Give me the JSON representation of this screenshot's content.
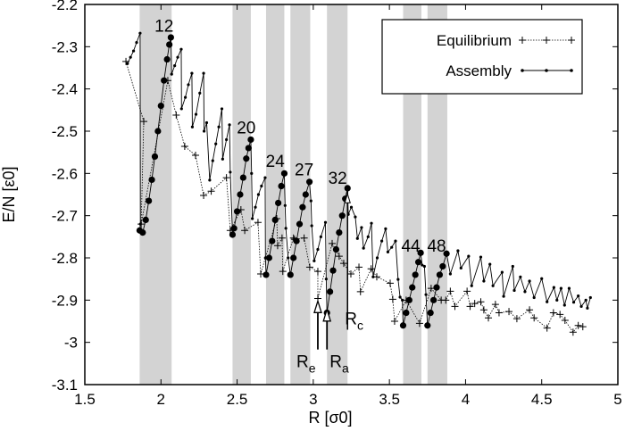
{
  "chart_data": {
    "type": "line",
    "xlabel": "R [σ0]",
    "ylabel": "E/N [ε0]",
    "xlim": [
      1.5,
      5
    ],
    "ylim": [
      -3.1,
      -2.2
    ],
    "xticks": [
      "1.5",
      "2",
      "2.5",
      "3",
      "3.5",
      "4",
      "4.5",
      "5"
    ],
    "yticks": [
      "-2.2",
      "-2.3",
      "-2.4",
      "-2.5",
      "-2.6",
      "-2.7",
      "-2.8",
      "-2.9",
      "-3",
      "-3.1"
    ],
    "grid": false,
    "legend_position": "top-right",
    "shaded_bands": [
      [
        1.86,
        2.07
      ],
      [
        2.47,
        2.59
      ],
      [
        2.69,
        2.81
      ],
      [
        2.85,
        2.98
      ],
      [
        3.09,
        3.225
      ],
      [
        3.59,
        3.71
      ],
      [
        3.75,
        3.88
      ]
    ],
    "peak_labels": [
      {
        "label": "12",
        "x": 2.02,
        "y": -2.25
      },
      {
        "label": "20",
        "x": 2.56,
        "y": -2.49
      },
      {
        "label": "24",
        "x": 2.75,
        "y": -2.57
      },
      {
        "label": "27",
        "x": 2.94,
        "y": -2.59
      },
      {
        "label": "32",
        "x": 3.16,
        "y": -2.61
      },
      {
        "label": "44",
        "x": 3.64,
        "y": -2.77
      },
      {
        "label": "48",
        "x": 3.81,
        "y": -2.77
      }
    ],
    "annotations": [
      {
        "label": "R",
        "sub": "e",
        "x": 3.03,
        "tip": -2.9,
        "tail": -3.0
      },
      {
        "label": "R",
        "sub": "a",
        "x": 3.09,
        "tip": -2.92,
        "tail": -3.0
      },
      {
        "label": "R",
        "sub": "c",
        "x": 3.225,
        "tip": -2.64,
        "tail": -2.97
      }
    ],
    "series": [
      {
        "name": "Equilibrium",
        "style": "dotted line with plus markers",
        "points": [
          [
            1.77,
            -2.335
          ],
          [
            1.887,
            -2.477
          ],
          [
            1.87,
            -2.72
          ],
          [
            2.045,
            -2.38
          ],
          [
            2.1,
            -2.462
          ],
          [
            2.156,
            -2.536
          ],
          [
            2.227,
            -2.557
          ],
          [
            2.28,
            -2.652
          ],
          [
            2.33,
            -2.642
          ],
          [
            2.43,
            -2.61
          ],
          [
            2.455,
            -2.735
          ],
          [
            2.525,
            -2.686
          ],
          [
            2.55,
            -2.735
          ],
          [
            2.637,
            -2.716
          ],
          [
            2.655,
            -2.838
          ],
          [
            2.76,
            -2.707
          ],
          [
            2.766,
            -2.771
          ],
          [
            2.795,
            -2.753
          ],
          [
            2.8,
            -2.832
          ],
          [
            2.87,
            -2.753
          ],
          [
            2.877,
            -2.756
          ],
          [
            2.94,
            -2.753
          ],
          [
            2.977,
            -2.822
          ],
          [
            3.03,
            -2.832
          ],
          [
            3.03,
            -2.896
          ],
          [
            3.124,
            -2.766
          ],
          [
            3.17,
            -2.796
          ],
          [
            3.2,
            -2.813
          ],
          [
            3.247,
            -2.838
          ],
          [
            3.3,
            -2.822
          ],
          [
            3.31,
            -2.88
          ],
          [
            3.38,
            -2.826
          ],
          [
            3.417,
            -2.845
          ],
          [
            3.505,
            -2.86
          ],
          [
            3.522,
            -2.898
          ],
          [
            3.534,
            -2.95
          ],
          [
            3.61,
            -2.9
          ],
          [
            3.698,
            -2.955
          ],
          [
            3.774,
            -2.872
          ],
          [
            3.84,
            -2.9
          ],
          [
            3.87,
            -2.9
          ],
          [
            3.9,
            -2.879
          ],
          [
            3.93,
            -2.915
          ],
          [
            4.01,
            -2.879
          ],
          [
            4.03,
            -2.915
          ],
          [
            4.06,
            -2.908
          ],
          [
            4.1,
            -2.904
          ],
          [
            4.12,
            -2.923
          ],
          [
            4.15,
            -2.942
          ],
          [
            4.196,
            -2.91
          ],
          [
            4.22,
            -2.93
          ],
          [
            4.285,
            -2.927
          ],
          [
            4.337,
            -2.944
          ],
          [
            4.42,
            -2.923
          ],
          [
            4.45,
            -2.942
          ],
          [
            4.535,
            -2.966
          ],
          [
            4.577,
            -2.93
          ],
          [
            4.62,
            -2.934
          ],
          [
            4.653,
            -2.948
          ],
          [
            4.706,
            -2.976
          ],
          [
            4.74,
            -2.96
          ],
          [
            4.77,
            -2.963
          ]
        ]
      },
      {
        "name": "Assembly",
        "style": "solid line with dot markers (large dots on assembly runs)",
        "points": [
          [
            1.78,
            -2.34,
            0
          ],
          [
            1.8,
            -2.325,
            0
          ],
          [
            1.82,
            -2.31,
            0
          ],
          [
            1.84,
            -2.29,
            0
          ],
          [
            1.863,
            -2.268,
            0
          ],
          [
            1.865,
            -2.72,
            0
          ],
          [
            1.86,
            -2.735,
            1
          ],
          [
            1.88,
            -2.74,
            1
          ],
          [
            1.9,
            -2.71,
            1
          ],
          [
            1.92,
            -2.665,
            1
          ],
          [
            1.94,
            -2.615,
            1
          ],
          [
            1.96,
            -2.56,
            1
          ],
          [
            1.98,
            -2.5,
            1
          ],
          [
            2.0,
            -2.44,
            1
          ],
          [
            2.02,
            -2.38,
            1
          ],
          [
            2.04,
            -2.33,
            1
          ],
          [
            2.055,
            -2.295,
            1
          ],
          [
            2.065,
            -2.278,
            1
          ],
          [
            2.07,
            -2.365,
            0
          ],
          [
            2.09,
            -2.345,
            0
          ],
          [
            2.11,
            -2.325,
            0
          ],
          [
            2.133,
            -2.306,
            0
          ],
          [
            2.135,
            -2.447,
            0
          ],
          [
            2.16,
            -2.42,
            0
          ],
          [
            2.18,
            -2.39,
            0
          ],
          [
            2.203,
            -2.363,
            0
          ],
          [
            2.206,
            -2.49,
            0
          ],
          [
            2.23,
            -2.46,
            0
          ],
          [
            2.255,
            -2.41,
            0
          ],
          [
            2.28,
            -2.363,
            0
          ],
          [
            2.283,
            -2.5,
            0
          ],
          [
            2.3,
            -2.48,
            0
          ],
          [
            2.32,
            -2.616,
            0
          ],
          [
            2.34,
            -2.57,
            0
          ],
          [
            2.36,
            -2.53,
            0
          ],
          [
            2.38,
            -2.49,
            0
          ],
          [
            2.4,
            -2.447,
            0
          ],
          [
            2.405,
            -2.566,
            0
          ],
          [
            2.43,
            -2.52,
            0
          ],
          [
            2.45,
            -2.485,
            0
          ],
          [
            2.455,
            -2.597,
            0
          ],
          [
            2.47,
            -2.745,
            1
          ],
          [
            2.48,
            -2.73,
            1
          ],
          [
            2.5,
            -2.69,
            1
          ],
          [
            2.52,
            -2.65,
            1
          ],
          [
            2.54,
            -2.61,
            1
          ],
          [
            2.56,
            -2.565,
            1
          ],
          [
            2.575,
            -2.54,
            1
          ],
          [
            2.59,
            -2.52,
            1
          ],
          [
            2.595,
            -2.6,
            0
          ],
          [
            2.6,
            -2.707,
            0
          ],
          [
            2.62,
            -2.68,
            0
          ],
          [
            2.64,
            -2.65,
            0
          ],
          [
            2.66,
            -2.63,
            0
          ],
          [
            2.684,
            -2.61,
            0
          ],
          [
            2.686,
            -2.8,
            0
          ],
          [
            2.69,
            -2.84,
            1
          ],
          [
            2.71,
            -2.8,
            1
          ],
          [
            2.73,
            -2.76,
            1
          ],
          [
            2.75,
            -2.71,
            1
          ],
          [
            2.77,
            -2.67,
            1
          ],
          [
            2.79,
            -2.63,
            1
          ],
          [
            2.81,
            -2.6,
            1
          ],
          [
            2.815,
            -2.676,
            0
          ],
          [
            2.82,
            -2.73,
            0
          ],
          [
            2.835,
            -2.8,
            0
          ],
          [
            2.85,
            -2.84,
            1
          ],
          [
            2.87,
            -2.8,
            1
          ],
          [
            2.89,
            -2.76,
            1
          ],
          [
            2.91,
            -2.72,
            1
          ],
          [
            2.93,
            -2.68,
            1
          ],
          [
            2.95,
            -2.65,
            1
          ],
          [
            2.975,
            -2.62,
            1
          ],
          [
            2.985,
            -2.665,
            0
          ],
          [
            2.99,
            -2.724,
            0
          ],
          [
            3.006,
            -2.807,
            0
          ],
          [
            3.03,
            -2.78,
            0
          ],
          [
            3.05,
            -2.75,
            0
          ],
          [
            3.08,
            -2.716,
            0
          ],
          [
            3.085,
            -2.85,
            0
          ],
          [
            3.09,
            -2.93,
            1
          ],
          [
            3.11,
            -2.88,
            1
          ],
          [
            3.13,
            -2.83,
            1
          ],
          [
            3.15,
            -2.78,
            1
          ],
          [
            3.17,
            -2.74,
            1
          ],
          [
            3.19,
            -2.7,
            1
          ],
          [
            3.21,
            -2.66,
            1
          ],
          [
            3.225,
            -2.635,
            1
          ],
          [
            3.23,
            -2.697,
            0
          ],
          [
            3.25,
            -2.68,
            0
          ],
          [
            3.276,
            -2.703,
            0
          ],
          [
            3.29,
            -2.754,
            0
          ],
          [
            3.317,
            -2.728,
            0
          ],
          [
            3.33,
            -2.777,
            0
          ],
          [
            3.36,
            -2.75,
            0
          ],
          [
            3.382,
            -2.718,
            0
          ],
          [
            3.393,
            -2.845,
            0
          ],
          [
            3.42,
            -2.8,
            0
          ],
          [
            3.45,
            -2.76,
            0
          ],
          [
            3.475,
            -2.731,
            0
          ],
          [
            3.49,
            -2.786,
            0
          ],
          [
            3.515,
            -2.775,
            0
          ],
          [
            3.54,
            -2.76,
            0
          ],
          [
            3.557,
            -2.851,
            0
          ],
          [
            3.57,
            -2.893,
            0
          ],
          [
            3.585,
            -2.9,
            0
          ],
          [
            3.59,
            -2.96,
            1
          ],
          [
            3.61,
            -2.93,
            1
          ],
          [
            3.63,
            -2.9,
            1
          ],
          [
            3.65,
            -2.87,
            1
          ],
          [
            3.67,
            -2.84,
            1
          ],
          [
            3.69,
            -2.81,
            1
          ],
          [
            3.705,
            -2.788,
            1
          ],
          [
            3.715,
            -2.817,
            0
          ],
          [
            3.73,
            -2.82,
            0
          ],
          [
            3.74,
            -2.887,
            0
          ],
          [
            3.75,
            -2.96,
            1
          ],
          [
            3.77,
            -2.93,
            1
          ],
          [
            3.79,
            -2.9,
            1
          ],
          [
            3.81,
            -2.87,
            1
          ],
          [
            3.83,
            -2.84,
            1
          ],
          [
            3.85,
            -2.82,
            1
          ],
          [
            3.875,
            -2.79,
            1
          ],
          [
            3.9,
            -2.838,
            0
          ],
          [
            3.95,
            -2.783,
            0
          ],
          [
            3.97,
            -2.824,
            0
          ],
          [
            4.02,
            -2.796,
            0
          ],
          [
            4.04,
            -2.866,
            0
          ],
          [
            4.1,
            -2.798,
            0
          ],
          [
            4.12,
            -2.855,
            0
          ],
          [
            4.16,
            -2.815,
            0
          ],
          [
            4.18,
            -2.866,
            0
          ],
          [
            4.24,
            -2.834,
            0
          ],
          [
            4.25,
            -2.891,
            0
          ],
          [
            4.31,
            -2.82,
            0
          ],
          [
            4.32,
            -2.877,
            0
          ],
          [
            4.36,
            -2.845,
            0
          ],
          [
            4.39,
            -2.88,
            0
          ],
          [
            4.42,
            -2.855,
            0
          ],
          [
            4.45,
            -2.894,
            0
          ],
          [
            4.5,
            -2.849,
            0
          ],
          [
            4.535,
            -2.904,
            0
          ],
          [
            4.58,
            -2.87,
            0
          ],
          [
            4.6,
            -2.9,
            0
          ],
          [
            4.627,
            -2.872,
            0
          ],
          [
            4.65,
            -2.912,
            0
          ],
          [
            4.68,
            -2.872,
            0
          ],
          [
            4.71,
            -2.905,
            0
          ],
          [
            4.74,
            -2.89,
            0
          ],
          [
            4.76,
            -2.915,
            0
          ],
          [
            4.79,
            -2.9,
            0
          ],
          [
            4.8,
            -2.919,
            0
          ],
          [
            4.82,
            -2.894,
            0
          ]
        ]
      }
    ],
    "colors": {
      "line": "#000000",
      "band": "#d3d3d3"
    }
  }
}
